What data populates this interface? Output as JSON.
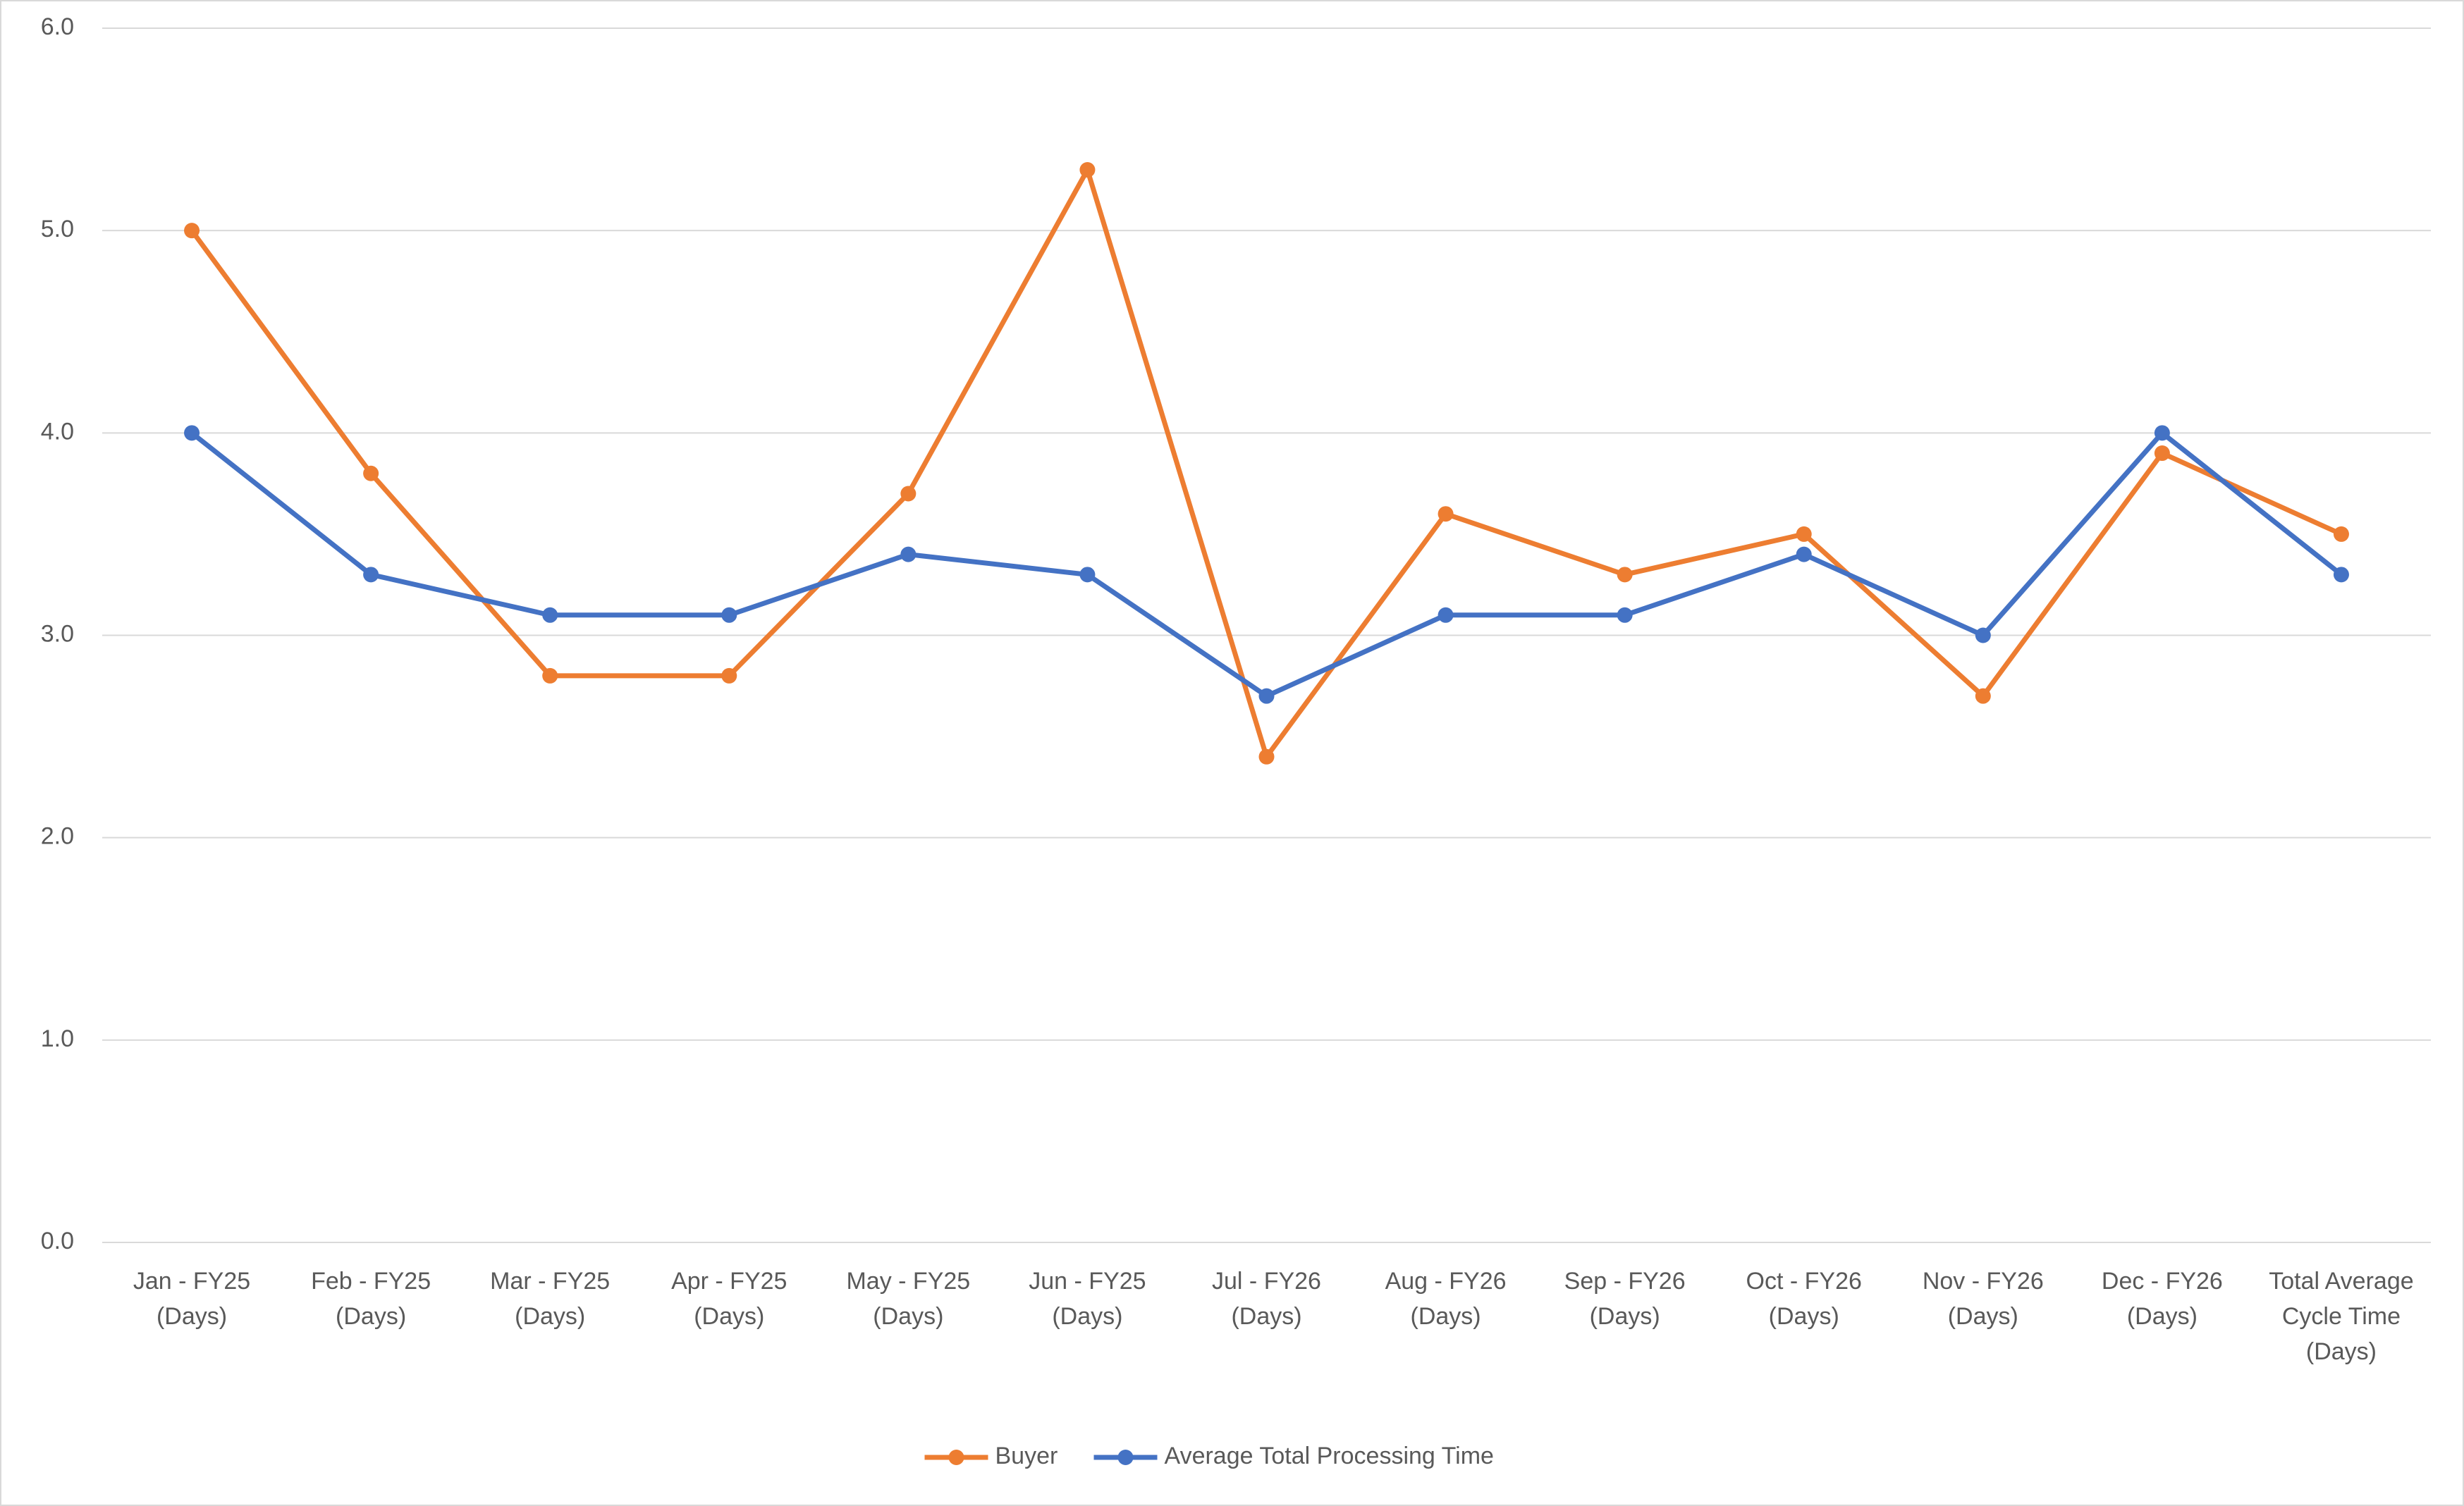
{
  "chart_data": {
    "type": "line",
    "categories": [
      "Jan - FY25 (Days)",
      "Feb - FY25 (Days)",
      "Mar - FY25 (Days)",
      "Apr - FY25 (Days)",
      "May - FY25 (Days)",
      "Jun - FY25 (Days)",
      "Jul - FY26 (Days)",
      "Aug - FY26 (Days)",
      "Sep - FY26 (Days)",
      "Oct - FY26 (Days)",
      "Nov - FY26 (Days)",
      "Dec - FY26 (Days)",
      "Total Average Cycle Time (Days)"
    ],
    "series": [
      {
        "name": "Buyer",
        "color": "#ed7d31",
        "values": [
          5.0,
          3.8,
          2.8,
          2.8,
          3.7,
          5.3,
          2.4,
          3.6,
          3.3,
          3.5,
          2.7,
          3.9,
          3.5
        ]
      },
      {
        "name": "Average Total Processing Time",
        "color": "#4472c4",
        "values": [
          4.0,
          3.3,
          3.1,
          3.1,
          3.4,
          3.3,
          2.7,
          3.1,
          3.1,
          3.4,
          3.0,
          4.0,
          3.3
        ]
      }
    ],
    "ylim": [
      0,
      6
    ],
    "yticks": [
      {
        "value": 0,
        "label": "0.0"
      },
      {
        "value": 1,
        "label": "1.0"
      },
      {
        "value": 2,
        "label": "2.0"
      },
      {
        "value": 3,
        "label": "3.0"
      },
      {
        "value": 4,
        "label": "4.0"
      },
      {
        "value": 5,
        "label": "5.0"
      },
      {
        "value": 6,
        "label": "6.0"
      }
    ],
    "grid": true,
    "legend": "bottom"
  }
}
